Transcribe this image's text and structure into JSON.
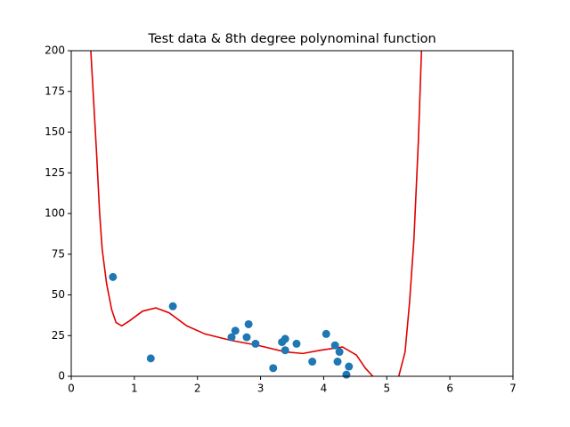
{
  "chart_data": [
    {
      "type": "scatter",
      "title": "Test data & 8th degree polynominal function",
      "color": "#1f77b4",
      "x": [
        0.66,
        1.26,
        1.61,
        2.54,
        2.6,
        2.78,
        2.81,
        2.92,
        3.2,
        3.34,
        3.39,
        3.39,
        3.57,
        3.82,
        4.04,
        4.18,
        4.22,
        4.25,
        4.36,
        4.4
      ],
      "values": [
        61,
        11,
        43,
        24,
        28,
        24,
        32,
        20,
        5,
        21,
        23,
        16,
        20,
        9,
        26,
        19,
        9,
        15,
        1,
        6
      ],
      "xlim": [
        0,
        7
      ],
      "xticks": [
        0,
        1,
        2,
        3,
        4,
        5,
        6,
        7
      ],
      "ylim": [
        0,
        200
      ],
      "yticks": [
        0,
        25,
        50,
        75,
        100,
        125,
        150,
        175,
        200
      ]
    },
    {
      "type": "line",
      "color": "#e00000",
      "x": [
        0.31,
        0.4,
        0.45,
        0.49,
        0.56,
        0.64,
        0.71,
        0.8,
        0.92,
        1.13,
        1.34,
        1.55,
        1.83,
        2.12,
        2.54,
        2.96,
        3.39,
        3.67,
        3.95,
        4.3,
        4.52,
        4.66,
        4.78,
        null,
        5.19,
        5.29,
        5.36,
        5.43,
        5.5,
        5.55
      ],
      "values": [
        200,
        138,
        100,
        78,
        57,
        41,
        33,
        31,
        34,
        40,
        42,
        39,
        31,
        26,
        22,
        19,
        15,
        14,
        16,
        18,
        13,
        5,
        0,
        null,
        0,
        15,
        45,
        84,
        144,
        200
      ]
    }
  ]
}
